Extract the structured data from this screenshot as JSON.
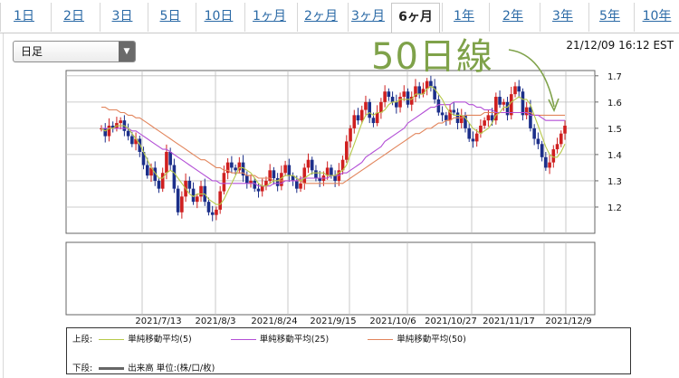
{
  "tabs": [
    "1日",
    "2日",
    "3日",
    "5日",
    "10日",
    "1ヶ月",
    "2ヶ月",
    "3ヶ月",
    "6ヶ月",
    "1年",
    "2年",
    "3年",
    "5年",
    "10年"
  ],
  "active_tab": "6ヶ月",
  "period_select": "日足",
  "timestamp": "21/12/09 16:12 EST",
  "annotation": "50日線",
  "legend": {
    "upper_label": "上段:",
    "lower_label": "下段:",
    "items": [
      {
        "label": "単純移動平均(5)",
        "color": "#b7c949"
      },
      {
        "label": "単純移動平均(25)",
        "color": "#b34fd6"
      },
      {
        "label": "単純移動平均(50)",
        "color": "#e2855c"
      }
    ],
    "volume_label": "出来高 単位:(株/口/枚)",
    "volume_color": "#666666"
  },
  "colors": {
    "up": "#cf1f1f",
    "down": "#1c2f8a",
    "grid": "#bbbbbb"
  },
  "chart_data": {
    "type": "candlestick",
    "x_tick_labels": [
      "2021/7/13",
      "2021/8/3",
      "2021/8/24",
      "2021/9/15",
      "2021/10/6",
      "2021/10/27",
      "2021/11/17",
      "2021/12/9"
    ],
    "ylim": [
      1.1,
      1.72
    ],
    "y_ticks": [
      1.2,
      1.3,
      1.4,
      1.5,
      1.6,
      1.7
    ],
    "grid": true,
    "closes": [
      1.5,
      1.47,
      1.51,
      1.5,
      1.52,
      1.53,
      1.49,
      1.47,
      1.44,
      1.46,
      1.41,
      1.36,
      1.32,
      1.35,
      1.3,
      1.27,
      1.33,
      1.41,
      1.36,
      1.27,
      1.18,
      1.24,
      1.3,
      1.27,
      1.22,
      1.24,
      1.28,
      1.22,
      1.18,
      1.17,
      1.19,
      1.26,
      1.33,
      1.37,
      1.35,
      1.34,
      1.37,
      1.32,
      1.29,
      1.3,
      1.27,
      1.26,
      1.28,
      1.3,
      1.34,
      1.31,
      1.28,
      1.33,
      1.36,
      1.32,
      1.3,
      1.27,
      1.29,
      1.35,
      1.38,
      1.34,
      1.31,
      1.3,
      1.32,
      1.35,
      1.32,
      1.3,
      1.34,
      1.38,
      1.45,
      1.5,
      1.55,
      1.53,
      1.57,
      1.6,
      1.54,
      1.52,
      1.56,
      1.6,
      1.64,
      1.62,
      1.6,
      1.58,
      1.62,
      1.64,
      1.59,
      1.62,
      1.66,
      1.63,
      1.65,
      1.68,
      1.66,
      1.61,
      1.56,
      1.55,
      1.53,
      1.57,
      1.56,
      1.52,
      1.55,
      1.5,
      1.46,
      1.45,
      1.48,
      1.51,
      1.53,
      1.55,
      1.53,
      1.62,
      1.59,
      1.6,
      1.55,
      1.63,
      1.66,
      1.64,
      1.55,
      1.58,
      1.5,
      1.46,
      1.44,
      1.39,
      1.35,
      1.37,
      1.42,
      1.44,
      1.48,
      1.51
    ],
    "sma5": [
      1.5,
      1.49,
      1.5,
      1.5,
      1.51,
      1.51,
      1.51,
      1.5,
      1.48,
      1.46,
      1.44,
      1.41,
      1.38,
      1.35,
      1.33,
      1.31,
      1.31,
      1.33,
      1.34,
      1.33,
      1.31,
      1.29,
      1.27,
      1.25,
      1.24,
      1.25,
      1.25,
      1.25,
      1.23,
      1.22,
      1.21,
      1.21,
      1.23,
      1.26,
      1.29,
      1.32,
      1.35,
      1.35,
      1.34,
      1.33,
      1.31,
      1.29,
      1.28,
      1.28,
      1.29,
      1.3,
      1.3,
      1.31,
      1.32,
      1.32,
      1.32,
      1.31,
      1.3,
      1.31,
      1.32,
      1.33,
      1.33,
      1.33,
      1.33,
      1.32,
      1.32,
      1.32,
      1.33,
      1.34,
      1.36,
      1.4,
      1.44,
      1.48,
      1.52,
      1.55,
      1.56,
      1.55,
      1.56,
      1.56,
      1.57,
      1.59,
      1.6,
      1.6,
      1.61,
      1.61,
      1.61,
      1.61,
      1.63,
      1.63,
      1.63,
      1.65,
      1.66,
      1.65,
      1.63,
      1.61,
      1.58,
      1.56,
      1.55,
      1.55,
      1.55,
      1.54,
      1.52,
      1.5,
      1.49,
      1.48,
      1.49,
      1.5,
      1.52,
      1.55,
      1.56,
      1.58,
      1.58,
      1.6,
      1.61,
      1.62,
      1.61,
      1.61,
      1.59,
      1.55,
      1.51,
      1.47,
      1.43,
      1.4,
      1.39,
      1.39,
      1.41,
      1.44
    ],
    "sma25": [
      1.5,
      1.5,
      1.5,
      1.5,
      1.5,
      1.5,
      1.5,
      1.5,
      1.49,
      1.49,
      1.48,
      1.47,
      1.46,
      1.45,
      1.44,
      1.43,
      1.42,
      1.42,
      1.41,
      1.4,
      1.39,
      1.38,
      1.37,
      1.36,
      1.35,
      1.34,
      1.33,
      1.32,
      1.31,
      1.3,
      1.3,
      1.29,
      1.29,
      1.29,
      1.29,
      1.29,
      1.29,
      1.29,
      1.29,
      1.29,
      1.29,
      1.28,
      1.28,
      1.28,
      1.28,
      1.29,
      1.29,
      1.29,
      1.3,
      1.3,
      1.3,
      1.3,
      1.31,
      1.31,
      1.31,
      1.31,
      1.31,
      1.31,
      1.31,
      1.31,
      1.32,
      1.32,
      1.32,
      1.33,
      1.33,
      1.34,
      1.35,
      1.36,
      1.37,
      1.39,
      1.4,
      1.41,
      1.42,
      1.43,
      1.45,
      1.46,
      1.47,
      1.48,
      1.49,
      1.5,
      1.52,
      1.53,
      1.54,
      1.55,
      1.56,
      1.57,
      1.58,
      1.58,
      1.59,
      1.59,
      1.59,
      1.59,
      1.6,
      1.6,
      1.6,
      1.6,
      1.59,
      1.59,
      1.58,
      1.58,
      1.57,
      1.57,
      1.57,
      1.56,
      1.56,
      1.56,
      1.56,
      1.56,
      1.56,
      1.56,
      1.56,
      1.56,
      1.55,
      1.55,
      1.55,
      1.54,
      1.53,
      1.53,
      1.53,
      1.53,
      1.53,
      1.53
    ],
    "sma50": [
      1.58,
      1.58,
      1.57,
      1.57,
      1.57,
      1.56,
      1.56,
      1.55,
      1.55,
      1.54,
      1.54,
      1.53,
      1.52,
      1.51,
      1.5,
      1.49,
      1.48,
      1.47,
      1.46,
      1.45,
      1.44,
      1.43,
      1.42,
      1.41,
      1.4,
      1.39,
      1.38,
      1.38,
      1.37,
      1.36,
      1.35,
      1.35,
      1.34,
      1.34,
      1.33,
      1.33,
      1.33,
      1.33,
      1.32,
      1.32,
      1.32,
      1.31,
      1.31,
      1.31,
      1.31,
      1.3,
      1.3,
      1.3,
      1.3,
      1.3,
      1.3,
      1.3,
      1.3,
      1.29,
      1.29,
      1.29,
      1.29,
      1.29,
      1.29,
      1.29,
      1.29,
      1.29,
      1.29,
      1.29,
      1.3,
      1.31,
      1.32,
      1.33,
      1.34,
      1.35,
      1.36,
      1.37,
      1.38,
      1.39,
      1.4,
      1.41,
      1.42,
      1.43,
      1.44,
      1.45,
      1.46,
      1.47,
      1.48,
      1.48,
      1.49,
      1.5,
      1.5,
      1.51,
      1.52,
      1.52,
      1.53,
      1.53,
      1.54,
      1.54,
      1.54,
      1.55,
      1.55,
      1.55,
      1.55,
      1.55,
      1.56,
      1.56,
      1.56,
      1.56,
      1.56,
      1.56,
      1.56,
      1.56,
      1.56,
      1.56,
      1.56,
      1.56,
      1.56,
      1.55,
      1.55,
      1.55,
      1.55,
      1.55,
      1.55,
      1.55,
      1.55,
      1.55
    ]
  }
}
